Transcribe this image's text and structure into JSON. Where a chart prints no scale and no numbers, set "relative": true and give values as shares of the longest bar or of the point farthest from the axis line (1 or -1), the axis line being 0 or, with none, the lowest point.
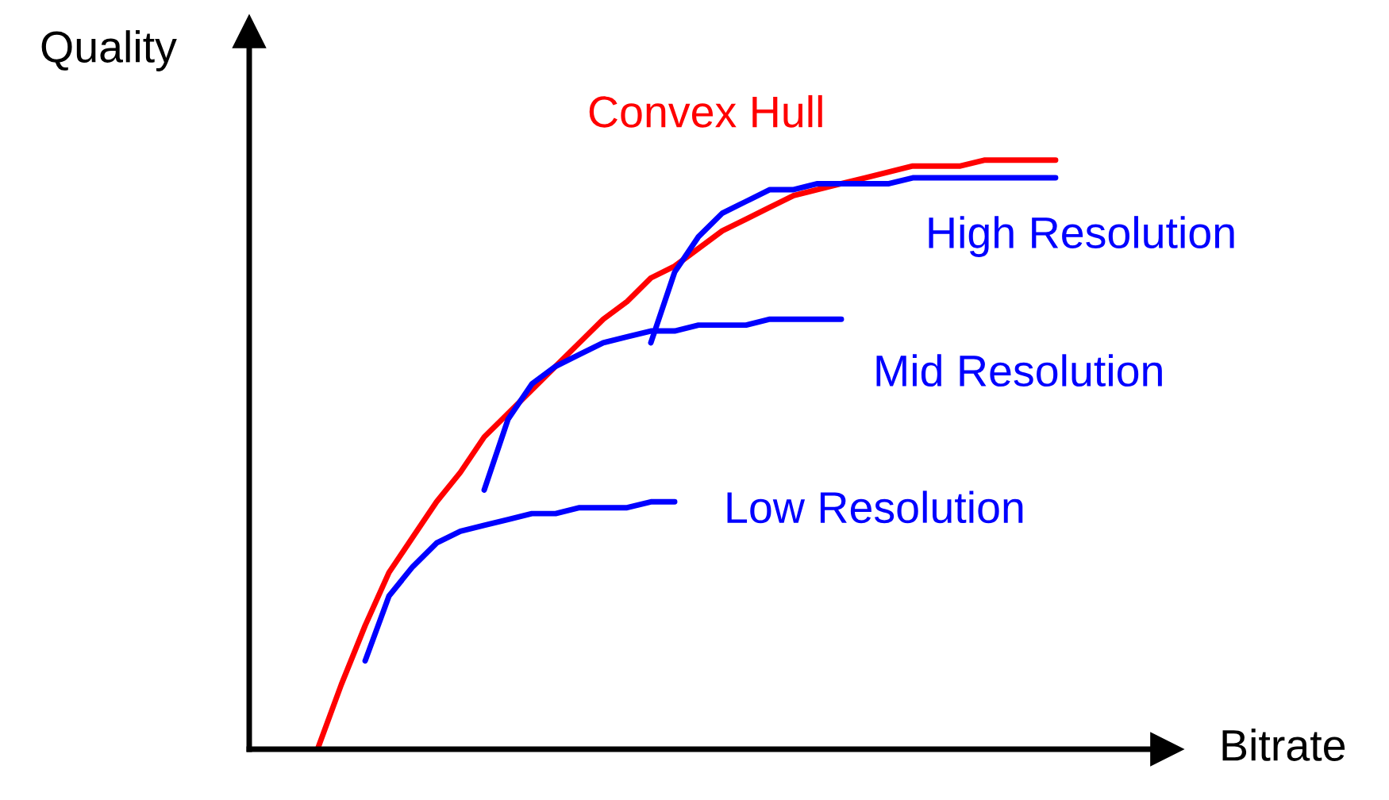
{
  "chart_data": {
    "type": "line",
    "relative": true,
    "xlabel": "Bitrate",
    "ylabel": "Quality",
    "categories": [
      null,
      null,
      null,
      null,
      null,
      null,
      null,
      null,
      null,
      null,
      null,
      null,
      null,
      null,
      null,
      null,
      null,
      null,
      null,
      null,
      null,
      null,
      null,
      null,
      null,
      null,
      null,
      null,
      null,
      null,
      null,
      null,
      null
    ],
    "series": [
      {
        "name": "Convex Hull",
        "color": "#ff0000",
        "values": [
          0,
          0.11,
          0.21,
          0.3,
          0.36,
          0.42,
          0.47,
          0.53,
          0.57,
          0.61,
          0.65,
          0.69,
          0.73,
          0.76,
          0.8,
          0.82,
          0.85,
          0.88,
          0.9,
          0.92,
          0.94,
          0.95,
          0.96,
          0.97,
          0.98,
          0.99,
          0.99,
          0.99,
          1.0,
          1.0,
          1.0,
          1.0,
          null
        ]
      },
      {
        "name": "High Resolution",
        "color": "#0000ff",
        "values": [
          null,
          null,
          null,
          null,
          null,
          null,
          null,
          null,
          null,
          null,
          null,
          null,
          null,
          null,
          0.69,
          0.81,
          0.87,
          0.91,
          0.93,
          0.95,
          0.95,
          0.96,
          0.96,
          0.96,
          0.96,
          0.97,
          0.97,
          0.97,
          0.97,
          0.97,
          0.97,
          0.97,
          null
        ]
      },
      {
        "name": "Mid Resolution",
        "color": "#0000ff",
        "values": [
          null,
          null,
          null,
          null,
          null,
          null,
          null,
          0.44,
          0.56,
          0.62,
          0.65,
          0.67,
          0.69,
          0.7,
          0.71,
          0.71,
          0.72,
          0.72,
          0.72,
          0.73,
          0.73,
          0.73,
          0.73,
          null,
          null,
          null,
          null,
          null,
          null,
          null,
          null,
          null,
          null
        ]
      },
      {
        "name": "Low Resolution",
        "color": "#0000ff",
        "values": [
          null,
          null,
          0.15,
          0.26,
          0.31,
          0.35,
          0.37,
          0.38,
          0.39,
          0.4,
          0.4,
          0.41,
          0.41,
          0.41,
          0.42,
          0.42,
          null,
          null,
          null,
          null,
          null,
          null,
          null,
          null,
          null,
          null,
          null,
          null,
          null,
          null,
          null,
          null,
          null
        ]
      }
    ]
  }
}
